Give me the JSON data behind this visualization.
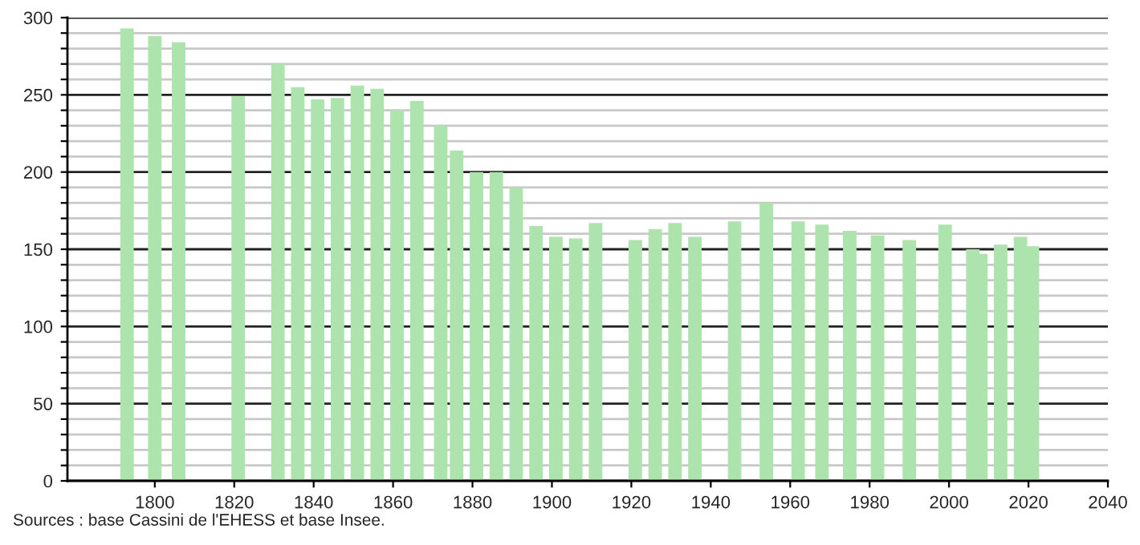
{
  "chart_data": {
    "type": "bar",
    "x": [
      1793,
      1800,
      1806,
      1821,
      1831,
      1836,
      1841,
      1846,
      1851,
      1856,
      1861,
      1866,
      1872,
      1876,
      1881,
      1886,
      1891,
      1896,
      1901,
      1906,
      1911,
      1921,
      1926,
      1931,
      1936,
      1946,
      1954,
      1962,
      1968,
      1975,
      1982,
      1990,
      1999,
      2006,
      2008,
      2013,
      2018,
      2021
    ],
    "values": [
      293,
      288,
      284,
      249,
      270,
      255,
      247,
      248,
      256,
      254,
      240,
      246,
      230,
      214,
      200,
      200,
      190,
      165,
      158,
      157,
      167,
      156,
      163,
      167,
      158,
      168,
      180,
      168,
      166,
      162,
      159,
      156,
      166,
      150,
      147,
      153,
      158,
      152
    ],
    "color": "#ade3ad",
    "xlim": [
      1778,
      2040
    ],
    "xticks": [
      1800,
      1820,
      1840,
      1860,
      1880,
      1900,
      1920,
      1940,
      1960,
      1980,
      2000,
      2020,
      2040
    ],
    "ylim": [
      0,
      300
    ],
    "yticks": [
      0,
      {
        "value": 10,
        "label": null
      },
      {
        "value": 20,
        "label": null
      },
      {
        "value": 30,
        "label": null
      },
      {
        "value": 40,
        "label": null
      },
      50,
      {
        "value": 60,
        "label": null
      },
      {
        "value": 70,
        "label": null
      },
      {
        "value": 80,
        "label": null
      },
      {
        "value": 90,
        "label": null
      },
      100,
      {
        "value": 110,
        "label": null
      },
      {
        "value": 120,
        "label": null
      },
      {
        "value": 130,
        "label": null
      },
      {
        "value": 140,
        "label": null
      },
      150,
      {
        "value": 160,
        "label": null
      },
      {
        "value": 170,
        "label": null
      },
      {
        "value": 180,
        "label": null
      },
      {
        "value": 190,
        "label": null
      },
      200,
      {
        "value": 210,
        "label": null
      },
      {
        "value": 220,
        "label": null
      },
      {
        "value": 230,
        "label": null
      },
      {
        "value": 240,
        "label": null
      },
      250,
      {
        "value": 260,
        "label": null
      },
      {
        "value": 270,
        "label": null
      },
      {
        "value": 280,
        "label": null
      },
      {
        "value": 290,
        "label": null
      },
      300
    ],
    "grid": "y",
    "annotations": [
      "Sources : base Cassini de l'EHESS et base Insee."
    ]
  }
}
